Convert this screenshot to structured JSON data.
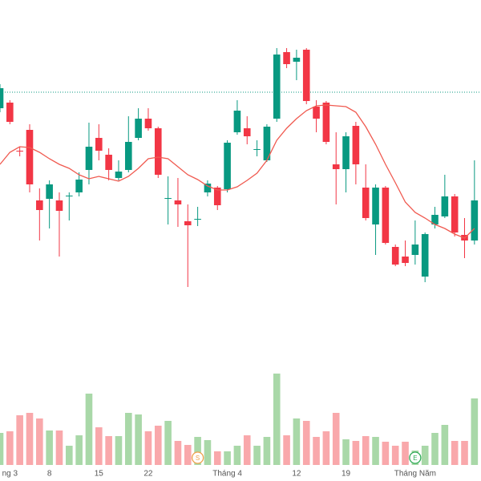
{
  "chart_data": {
    "type": "candlestick",
    "categories": [
      null,
      "ng 3",
      null,
      null,
      null,
      "8",
      null,
      null,
      null,
      null,
      "15",
      null,
      null,
      null,
      null,
      "22",
      null,
      null,
      null,
      null,
      null,
      null,
      null,
      "Tháng 4",
      null,
      null,
      null,
      null,
      null,
      null,
      "12",
      null,
      null,
      null,
      null,
      "19",
      null,
      null,
      null,
      null,
      null,
      null,
      "Tháng Năm",
      null,
      null,
      null,
      null,
      null,
      null
    ],
    "open": [
      465,
      472,
      412,
      438,
      350,
      352,
      350,
      355,
      360,
      388,
      428,
      407,
      378,
      388,
      428,
      452,
      440,
      352,
      350,
      324,
      326,
      360,
      366,
      364,
      435,
      440,
      413,
      400,
      452,
      535,
      523,
      538,
      467,
      472,
      395,
      389,
      443,
      366,
      320,
      366,
      292,
      280,
      282,
      255,
      320,
      330,
      355,
      307,
      300
    ],
    "high": [
      495,
      475,
      417,
      445,
      365,
      375,
      360,
      360,
      385,
      447,
      445,
      415,
      400,
      455,
      465,
      465,
      442,
      380,
      378,
      345,
      342,
      375,
      368,
      425,
      475,
      455,
      425,
      445,
      540,
      540,
      538,
      540,
      475,
      474,
      435,
      435,
      448,
      395,
      370,
      368,
      295,
      300,
      325,
      310,
      342,
      382,
      358,
      328,
      400
    ],
    "low": [
      460,
      445,
      405,
      360,
      300,
      315,
      280,
      325,
      355,
      370,
      400,
      375,
      375,
      385,
      425,
      437,
      378,
      320,
      317,
      242,
      318,
      355,
      338,
      360,
      432,
      420,
      405,
      398,
      448,
      515,
      500,
      470,
      435,
      420,
      345,
      360,
      370,
      325,
      282,
      295,
      268,
      268,
      270,
      248,
      315,
      328,
      305,
      278,
      295
    ],
    "close": [
      490,
      448,
      411,
      370,
      338,
      370,
      337,
      356,
      376,
      417,
      412,
      388,
      386,
      423,
      452,
      440,
      382,
      353,
      345,
      319,
      327,
      371,
      344,
      422,
      462,
      430,
      414,
      442,
      532,
      520,
      528,
      474,
      452,
      423,
      389,
      430,
      395,
      328,
      366,
      297,
      270,
      272,
      295,
      308,
      332,
      355,
      310,
      300,
      350
    ],
    "volume": [
      40,
      42,
      62,
      65,
      58,
      43,
      43,
      24,
      37,
      89,
      47,
      36,
      36,
      65,
      63,
      42,
      49,
      55,
      30,
      25,
      35,
      31,
      17,
      17,
      24,
      37,
      24,
      35,
      114,
      37,
      58,
      55,
      35,
      42,
      65,
      32,
      30,
      36,
      35,
      29,
      24,
      29,
      18,
      24,
      40,
      50,
      30,
      30,
      83
    ],
    "ma": [
      395,
      410,
      417,
      416,
      410,
      402,
      395,
      390,
      382,
      377,
      380,
      377,
      374,
      380,
      390,
      402,
      404,
      402,
      392,
      382,
      376,
      368,
      363,
      363,
      367,
      375,
      384,
      400,
      425,
      440,
      452,
      462,
      468,
      469,
      468,
      467,
      460,
      442,
      420,
      395,
      372,
      348,
      335,
      328,
      320,
      315,
      308,
      303,
      315
    ],
    "event_labels": [
      null,
      null,
      null,
      null,
      null,
      null,
      null,
      null,
      null,
      null,
      null,
      null,
      null,
      null,
      null,
      null,
      null,
      null,
      null,
      null,
      "S",
      null,
      null,
      null,
      null,
      null,
      null,
      null,
      null,
      null,
      null,
      null,
      null,
      null,
      null,
      null,
      null,
      null,
      null,
      null,
      null,
      null,
      "E",
      null,
      null,
      null,
      null,
      null,
      null
    ],
    "event_colors": [
      null,
      null,
      null,
      null,
      null,
      null,
      null,
      null,
      null,
      null,
      null,
      null,
      null,
      null,
      null,
      null,
      null,
      null,
      null,
      null,
      "#f0a04b",
      null,
      null,
      null,
      null,
      null,
      null,
      null,
      null,
      null,
      null,
      null,
      null,
      null,
      null,
      null,
      null,
      null,
      null,
      null,
      null,
      null,
      "#2eaa55",
      null,
      null,
      null,
      null,
      null,
      null
    ],
    "price_line": 485,
    "ylim": [
      0,
      600
    ],
    "volume_ylim": [
      0,
      150
    ],
    "up_color": "#089981",
    "down_color": "#f23645",
    "volume_up_color": "#a9d8a8",
    "volume_down_color": "#f9a8ab",
    "ma_color": "#f05a50",
    "price_line_color": "#089981"
  }
}
